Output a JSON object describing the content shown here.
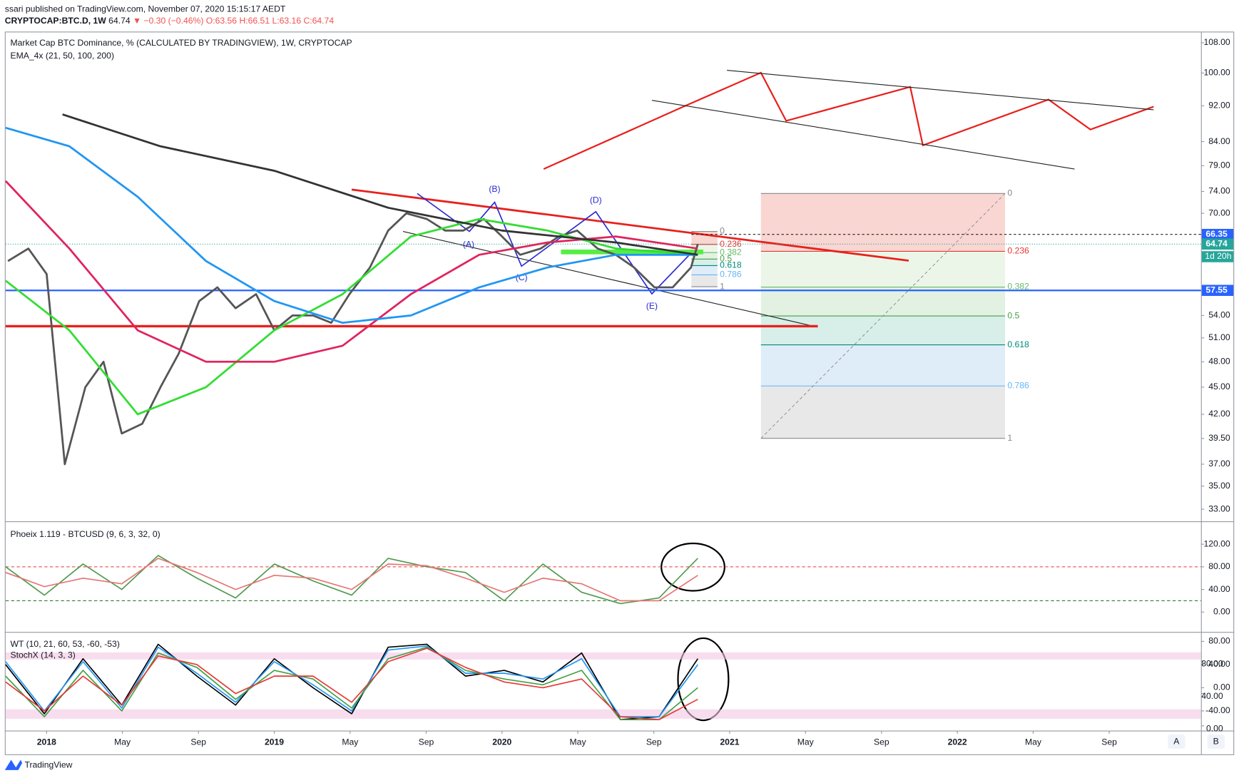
{
  "header": {
    "publisher": "ssari published on TradingView.com, November 07, 2020 15:15:17 AEDT",
    "symbol": "CRYPTOCAP:BTC.D, 1W",
    "last": "64.74",
    "change": "▼ −0.30 (−0.46%)",
    "ohlc": "O:63.56 H:66.51 L:63.16 C:64.74"
  },
  "footer": {
    "logo": "TradingView",
    "buttons": [
      "A",
      "B"
    ]
  },
  "chart_data": [
    {
      "type": "line",
      "title": "Market Cap BTC Dominance, % (CALCULATED BY TRADINGVIEW), 1W, CRYPTOCAP",
      "subtitle": "EMA_4x (21, 50, 100, 200)",
      "log_scale": true,
      "xlim": [
        2017.82,
        2023.07
      ],
      "ylim": [
        32.0,
        111.1
      ],
      "xticks": [
        {
          "value": 2018,
          "label": "2018"
        },
        {
          "value": 2018.333,
          "label": "May"
        },
        {
          "value": 2018.667,
          "label": "Sep"
        },
        {
          "value": 2019,
          "label": "2019"
        },
        {
          "value": 2019.333,
          "label": "May"
        },
        {
          "value": 2019.667,
          "label": "Sep"
        },
        {
          "value": 2020,
          "label": "2020"
        },
        {
          "value": 2020.333,
          "label": "May"
        },
        {
          "value": 2020.667,
          "label": "Sep"
        },
        {
          "value": 2021,
          "label": "2021"
        },
        {
          "value": 2021.333,
          "label": "May"
        },
        {
          "value": 2021.667,
          "label": "Sep"
        },
        {
          "value": 2022,
          "label": "2022"
        },
        {
          "value": 2022.333,
          "label": "May"
        },
        {
          "value": 2022.667,
          "label": "Sep"
        }
      ],
      "yticks": [
        {
          "value": 108,
          "label": "108.00"
        },
        {
          "value": 100,
          "label": "100.00"
        },
        {
          "value": 92,
          "label": "92.00"
        },
        {
          "value": 84,
          "label": "84.00"
        },
        {
          "value": 79,
          "label": "79.00"
        },
        {
          "value": 74,
          "label": "74.00"
        },
        {
          "value": 70,
          "label": "70.00"
        },
        {
          "value": 54,
          "label": "54.00"
        },
        {
          "value": 51,
          "label": "51.00"
        },
        {
          "value": 48,
          "label": "48.00"
        },
        {
          "value": 45,
          "label": "45.00"
        },
        {
          "value": 42,
          "label": "42.00"
        },
        {
          "value": 39.5,
          "label": "39.50"
        },
        {
          "value": 37,
          "label": "37.00"
        },
        {
          "value": 35,
          "label": "35.00"
        },
        {
          "value": 33,
          "label": "33.00"
        }
      ],
      "series": [
        {
          "color": "#555555",
          "x": [
            2017.83,
            2017.92,
            2018.0,
            2018.08,
            2018.17,
            2018.25,
            2018.33,
            2018.42,
            2018.5,
            2018.58,
            2018.67,
            2018.75,
            2018.83,
            2018.92,
            2019.0,
            2019.08,
            2019.17,
            2019.25,
            2019.33,
            2019.42,
            2019.5,
            2019.58,
            2019.67,
            2019.75,
            2019.83,
            2019.92,
            2020.0,
            2020.08,
            2020.17,
            2020.25,
            2020.33,
            2020.42,
            2020.5,
            2020.58,
            2020.67,
            2020.75,
            2020.83,
            2020.86
          ],
          "values": [
            62,
            64,
            60,
            37,
            45,
            48,
            40,
            41,
            45,
            49,
            56,
            58,
            55,
            57,
            52,
            54,
            54,
            53,
            57,
            61,
            67,
            70,
            69,
            67,
            67,
            69,
            66,
            63,
            64,
            66,
            67,
            64,
            63,
            61,
            58,
            58,
            61,
            64.74
          ]
        },
        {
          "color": "#33dd33",
          "x": [
            2017.82,
            2018.1,
            2018.4,
            2018.7,
            2019.0,
            2019.3,
            2019.6,
            2019.9,
            2020.2,
            2020.5,
            2020.86
          ],
          "values": [
            59,
            52,
            42,
            45,
            52,
            57,
            66,
            69,
            67,
            64,
            63
          ]
        },
        {
          "color": "#e0245e",
          "x": [
            2017.82,
            2018.1,
            2018.4,
            2018.7,
            2019.0,
            2019.3,
            2019.6,
            2019.9,
            2020.2,
            2020.5,
            2020.86
          ],
          "values": [
            76,
            64,
            52,
            48,
            48,
            50,
            57,
            63,
            65,
            66,
            64
          ]
        },
        {
          "color": "#2196f3",
          "x": [
            2017.82,
            2018.1,
            2018.4,
            2018.7,
            2019.0,
            2019.3,
            2019.6,
            2019.9,
            2020.2,
            2020.5,
            2020.86
          ],
          "values": [
            87,
            83,
            73,
            62,
            56,
            53,
            54,
            58,
            61,
            63,
            63
          ]
        },
        {
          "color": "#333333",
          "x": [
            2018.07,
            2018.5,
            2019.0,
            2019.5,
            2020.0,
            2020.5,
            2020.86
          ],
          "values": [
            90,
            83,
            78,
            71,
            67,
            65,
            63
          ]
        }
      ],
      "price_labels": [
        {
          "value": 66.35,
          "color": "#2962ff"
        },
        {
          "value": 64.74,
          "color": "#26a69a"
        },
        {
          "value": 57.55,
          "color": "#2962ff"
        }
      ],
      "countdown": "1d 20h",
      "wave_labels": [
        "(A)",
        "(B)",
        "(C)",
        "(D)",
        "(E)"
      ],
      "fib_small": [
        0,
        0.236,
        0.382,
        0.5,
        0.618,
        0.786,
        1
      ],
      "fib_large": [
        0,
        0.236,
        0.382,
        0.5,
        0.618,
        0.786,
        1
      ]
    },
    {
      "type": "line",
      "title": "Phoeix 1.119 - BTCUSD (9, 6, 3, 32, 0)",
      "xlim": [
        2017.82,
        2023.07
      ],
      "ylim": [
        -35,
        160.5
      ],
      "yticks": [
        {
          "value": 120,
          "label": "120.00"
        },
        {
          "value": 80,
          "label": "80.00"
        },
        {
          "value": 40,
          "label": "40.00"
        },
        {
          "value": 0,
          "label": "0.00"
        }
      ],
      "levels": [
        {
          "value": 80,
          "color": "#e53935"
        },
        {
          "value": 20,
          "color": "#2e7d32"
        }
      ],
      "x": [
        2017.82,
        2017.99,
        2018.16,
        2018.33,
        2018.49,
        2018.66,
        2018.83,
        2019.0,
        2019.17,
        2019.34,
        2019.5,
        2019.67,
        2019.84,
        2020.01,
        2020.18,
        2020.35,
        2020.52,
        2020.69,
        2020.86
      ],
      "series": [
        {
          "color": "#4f9a4f",
          "values": [
            80,
            30,
            85,
            40,
            100,
            60,
            25,
            85,
            55,
            30,
            95,
            80,
            70,
            20,
            85,
            35,
            15,
            25,
            95
          ]
        },
        {
          "color": "#e57373",
          "values": [
            70,
            45,
            60,
            50,
            95,
            70,
            40,
            65,
            60,
            40,
            85,
            82,
            60,
            35,
            60,
            50,
            20,
            20,
            65
          ]
        }
      ]
    },
    {
      "type": "line",
      "title": "WT (10, 21, 60, 53, -60, -53)",
      "subtitle": "StochX (14, 3, 3)",
      "xlim": [
        2017.82,
        2023.07
      ],
      "ylim": [
        -74,
        96.4
      ],
      "y2lim": [
        -5.9,
        116
      ],
      "yticks": [
        {
          "value": 80,
          "label": "80.00"
        },
        {
          "value": 40,
          "label": "40.00"
        },
        {
          "value": 0,
          "label": "0.00"
        },
        {
          "value": -40,
          "label": "-40.00"
        }
      ],
      "y2ticks": [
        {
          "value": 80,
          "label": "80.00"
        },
        {
          "value": 40,
          "label": "40.00"
        },
        {
          "value": 0,
          "label": "0.00"
        }
      ],
      "x": [
        2017.82,
        2017.99,
        2018.16,
        2018.33,
        2018.49,
        2018.66,
        2018.83,
        2019.0,
        2019.17,
        2019.34,
        2019.5,
        2019.67,
        2019.84,
        2020.01,
        2020.18,
        2020.35,
        2020.52,
        2020.69,
        2020.86
      ],
      "series": [
        {
          "color": "#000000",
          "values": [
            40,
            -45,
            50,
            -30,
            75,
            20,
            -30,
            50,
            0,
            -45,
            70,
            75,
            20,
            30,
            10,
            60,
            -55,
            -50,
            50
          ]
        },
        {
          "color": "#2196f3",
          "values": [
            45,
            -40,
            45,
            -35,
            70,
            25,
            -25,
            45,
            5,
            -40,
            65,
            72,
            25,
            25,
            15,
            50,
            -50,
            -50,
            40
          ]
        },
        {
          "color": "#43a047",
          "values": [
            20,
            -50,
            30,
            -40,
            60,
            35,
            -20,
            30,
            15,
            -35,
            50,
            70,
            30,
            15,
            5,
            30,
            -55,
            -55,
            0
          ]
        },
        {
          "color": "#e53935",
          "values": [
            10,
            -40,
            20,
            -30,
            55,
            40,
            -10,
            20,
            20,
            -25,
            45,
            68,
            35,
            10,
            0,
            15,
            -50,
            -55,
            -20
          ]
        }
      ]
    }
  ]
}
